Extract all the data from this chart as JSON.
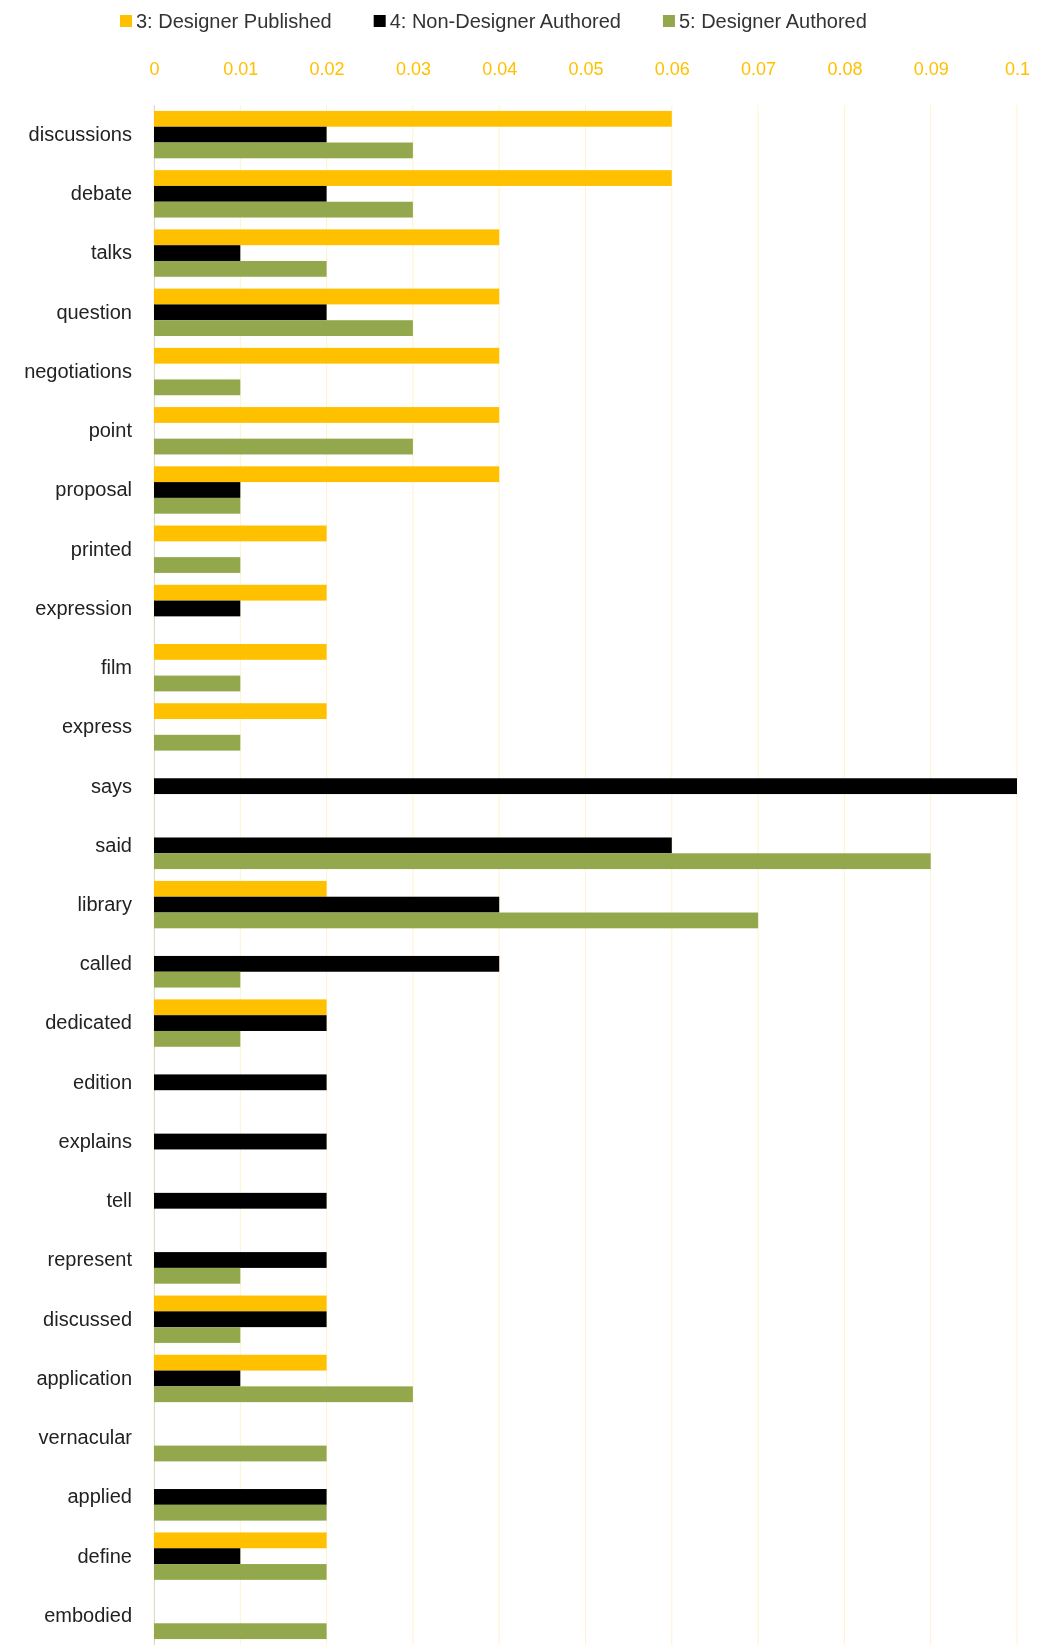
{
  "chart_data": {
    "type": "bar",
    "orientation": "horizontal",
    "categories": [
      "discussions",
      "debate",
      "talks",
      "question",
      "negotiations",
      "point",
      "proposal",
      "printed",
      "expression",
      "film",
      "express",
      "says",
      "said",
      "library",
      "called",
      "dedicated",
      "edition",
      "explains",
      "tell",
      "represent",
      "discussed",
      "application",
      "vernacular",
      "applied",
      "define",
      "embodied"
    ],
    "series": [
      {
        "name": "3: Designer Published",
        "color": "#ffc000",
        "values": [
          0.06,
          0.06,
          0.04,
          0.04,
          0.04,
          0.04,
          0.04,
          0.02,
          0.02,
          0.02,
          0.02,
          null,
          null,
          0.02,
          null,
          0.02,
          null,
          null,
          null,
          null,
          0.02,
          0.02,
          null,
          null,
          0.02,
          null
        ]
      },
      {
        "name": "4: Non-Designer Authored",
        "color": "#000000",
        "values": [
          0.02,
          0.02,
          0.01,
          0.02,
          null,
          null,
          0.01,
          null,
          0.01,
          null,
          null,
          0.1,
          0.06,
          0.04,
          0.04,
          0.02,
          0.02,
          0.02,
          0.02,
          0.02,
          0.02,
          0.01,
          null,
          0.02,
          0.01,
          null
        ]
      },
      {
        "name": "5: Designer Authored",
        "color": "#93a84c",
        "values": [
          0.03,
          0.03,
          0.02,
          0.03,
          0.01,
          0.03,
          0.01,
          0.01,
          null,
          0.01,
          0.01,
          null,
          0.09,
          0.07,
          0.01,
          0.01,
          null,
          null,
          null,
          0.01,
          0.01,
          0.03,
          0.02,
          0.02,
          0.02,
          0.02
        ]
      }
    ],
    "xlim": [
      0,
      0.1
    ],
    "xticks": [
      0,
      0.01,
      0.02,
      0.03,
      0.04,
      0.05,
      0.06,
      0.07,
      0.08,
      0.09,
      0.1
    ],
    "grid": "x",
    "legend": "top"
  }
}
